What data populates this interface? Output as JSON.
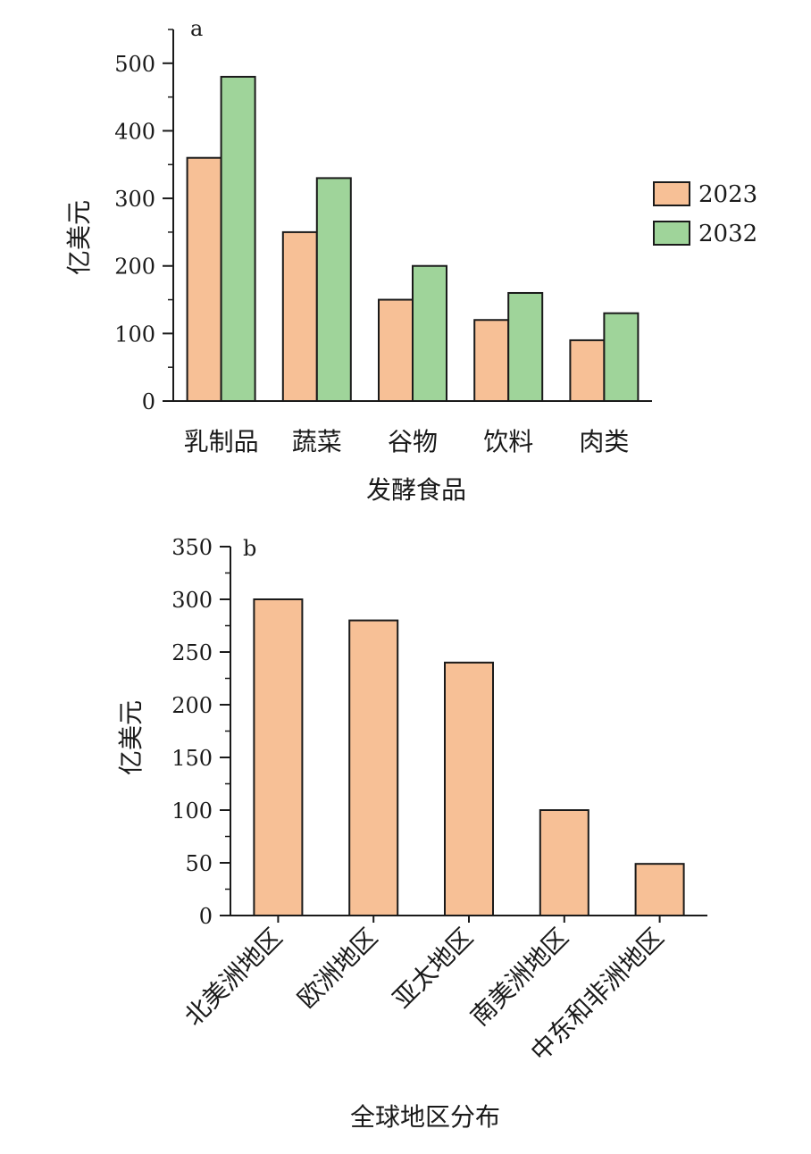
{
  "colors": {
    "s2023": "#f7c096",
    "s2032": "#9fd49a",
    "bar_b": "#f7c096"
  },
  "chart_data": [
    {
      "type": "bar",
      "panel_label": "a",
      "categories": [
        "乳制品",
        "蔬菜",
        "谷物",
        "饮料",
        "肉类"
      ],
      "series": [
        {
          "name": "2023",
          "values": [
            360,
            250,
            150,
            120,
            90
          ]
        },
        {
          "name": "2032",
          "values": [
            480,
            330,
            200,
            160,
            130
          ]
        }
      ],
      "xlabel": "发酵食品",
      "ylabel": "亿美元",
      "ylim": [
        0,
        550
      ],
      "yticks": [
        0,
        100,
        200,
        300,
        400,
        500
      ],
      "legend": "right",
      "grid": false
    },
    {
      "type": "bar",
      "panel_label": "b",
      "categories": [
        "北美洲地区",
        "欧洲地区",
        "亚太地区",
        "南美洲地区",
        "中东和非洲地区"
      ],
      "values": [
        300,
        280,
        240,
        100,
        49
      ],
      "xlabel": "全球地区分布",
      "ylabel": "亿美元",
      "ylim": [
        0,
        350
      ],
      "yticks": [
        0,
        50,
        100,
        150,
        200,
        250,
        300,
        350
      ],
      "legend": "none",
      "grid": false
    }
  ]
}
